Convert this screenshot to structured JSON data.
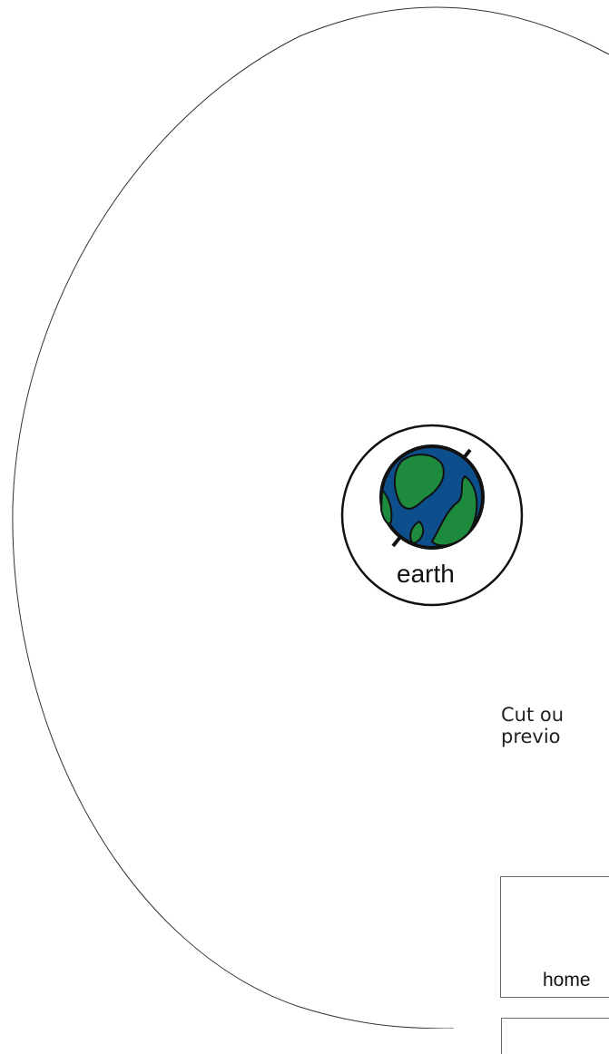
{
  "planet": {
    "label": "earth",
    "icon": "earth-icon"
  },
  "instruction": {
    "line1": "Cut ou",
    "line2": "previo"
  },
  "cards": [
    {
      "label": "home",
      "icon": "house-icon"
    }
  ]
}
